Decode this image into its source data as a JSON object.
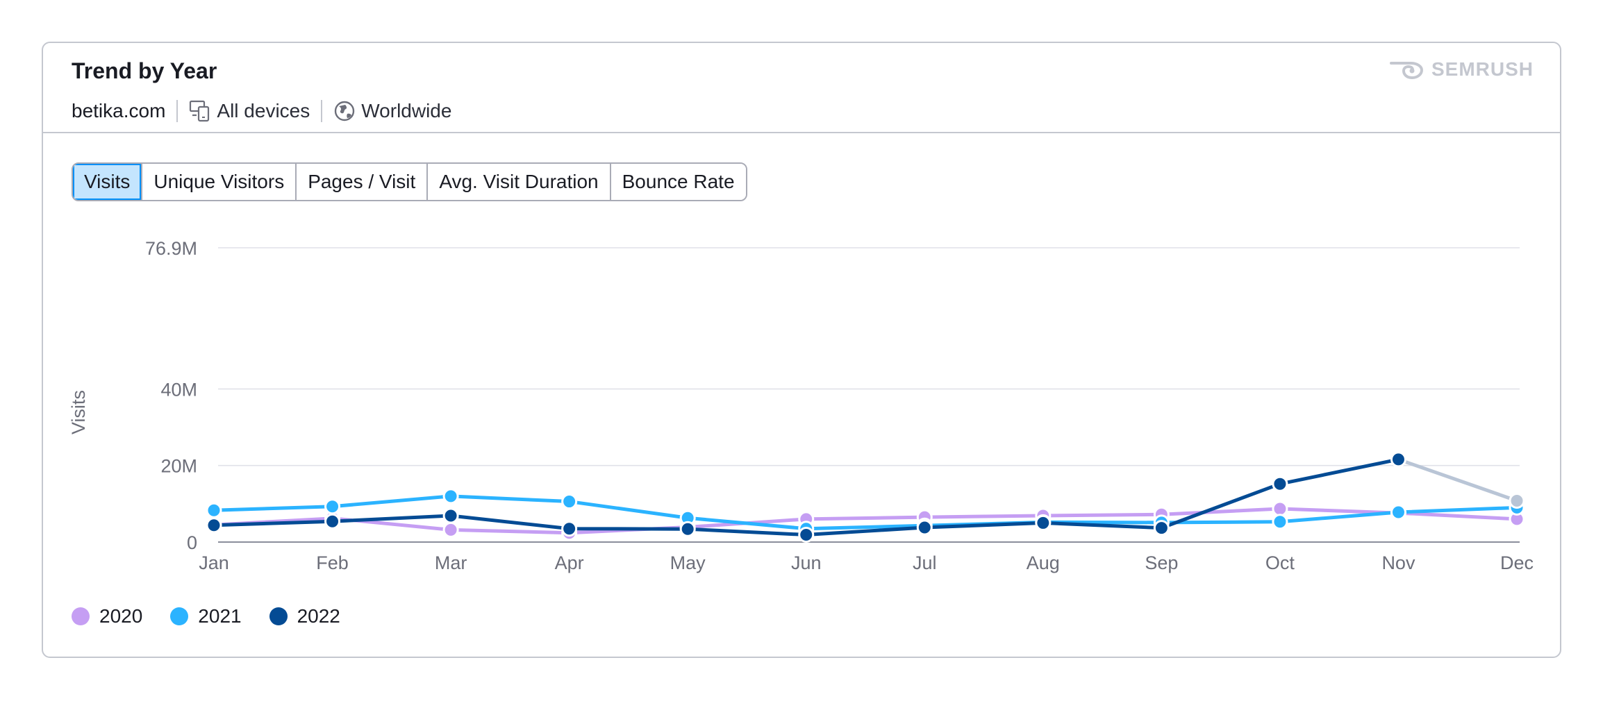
{
  "header": {
    "title": "Trend by Year",
    "domain": "betika.com",
    "device_label": "All devices",
    "region_label": "Worldwide",
    "brand": "SEMRUSH"
  },
  "icons": {
    "device": "devices-icon",
    "region": "globe-icon",
    "brand": "semrush-logo-icon"
  },
  "tabs": [
    {
      "label": "Visits",
      "active": true
    },
    {
      "label": "Unique Visitors",
      "active": false
    },
    {
      "label": "Pages / Visit",
      "active": false
    },
    {
      "label": "Avg. Visit Duration",
      "active": false
    },
    {
      "label": "Bounce Rate",
      "active": false
    }
  ],
  "chart_data": {
    "type": "line",
    "ylabel": "Visits",
    "ylim": [
      0,
      76900000
    ],
    "yticks": [
      {
        "value": 0,
        "label": "0"
      },
      {
        "value": 20000000,
        "label": "20M"
      },
      {
        "value": 40000000,
        "label": "40M"
      },
      {
        "value": 76900000,
        "label": "76.9M"
      }
    ],
    "categories": [
      "Jan",
      "Feb",
      "Mar",
      "Apr",
      "May",
      "Jun",
      "Jul",
      "Aug",
      "Sep",
      "Oct",
      "Nov",
      "Dec"
    ],
    "grid": true,
    "legend_position": "bottom-left",
    "series": [
      {
        "name": "2020",
        "color": "#c59ef3",
        "values": [
          4500000,
          6200000,
          3200000,
          2400000,
          3900000,
          6000000,
          6500000,
          6900000,
          7200000,
          8700000,
          7600000,
          6000000
        ]
      },
      {
        "name": "2021",
        "color": "#2bb3ff",
        "values": [
          8300000,
          9300000,
          12000000,
          10600000,
          6300000,
          3500000,
          4300000,
          5200000,
          5100000,
          5300000,
          7800000,
          9000000
        ]
      },
      {
        "name": "2022",
        "color": "#044b94",
        "values": [
          4400000,
          5400000,
          6900000,
          3500000,
          3400000,
          1900000,
          3800000,
          5000000,
          3700000,
          15200000,
          21600000,
          10800000
        ],
        "partial_from_index": 10,
        "partial_color": "#b9c5d6"
      }
    ]
  }
}
